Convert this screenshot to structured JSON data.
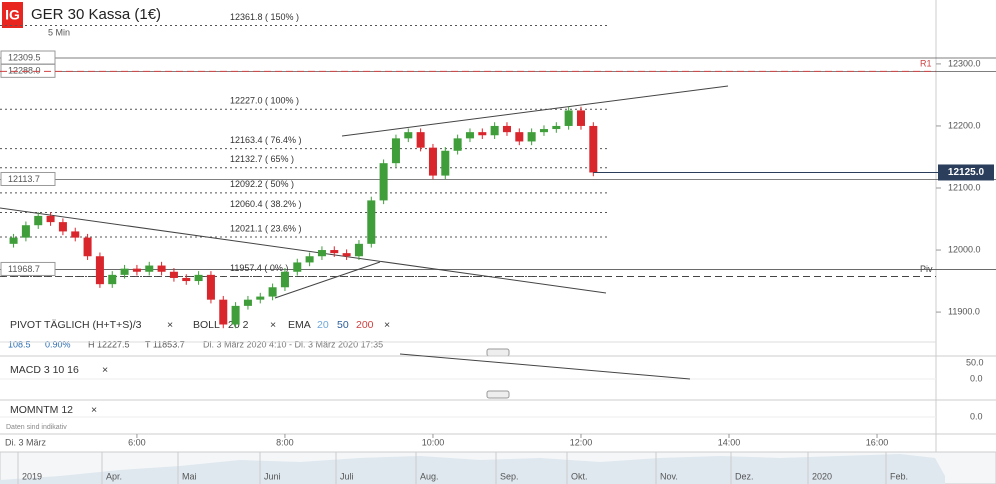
{
  "header": {
    "logo": "IG",
    "title": "GER 30 Kassa (1€)",
    "interval": "5 Min"
  },
  "indicators": {
    "pivot": "PIVOT TÄGLICH (H+T+S)/3",
    "boll": "BOLL",
    "boll_params": "20  2",
    "ema": "EMA",
    "ema_20": "20",
    "ema_50": "50",
    "ema_200": "200"
  },
  "info": {
    "change": "108.5",
    "percent": "0.90%",
    "high": "H 12227.5",
    "low": "T 11853.7",
    "range": "Di. 3 März 2020 4:10 - Di. 3 März 2020 17:35"
  },
  "macd": {
    "label": "MACD  3  10  16",
    "tick_top": "50.0",
    "tick_zero": "0.0"
  },
  "momentum": {
    "label": "MOMNTM  12",
    "tick_zero": "0.0",
    "note": "Daten sind indikativ"
  },
  "navigator": [
    "2019",
    "Apr.",
    "Mai",
    "Juni",
    "Juli",
    "Aug.",
    "Sep.",
    "Okt.",
    "Nov.",
    "Dez.",
    "2020",
    "Feb."
  ],
  "chart_data": {
    "type": "candlestick",
    "date_label": "Di. 3 März",
    "x": [
      260,
      270,
      280,
      290,
      300,
      310,
      320,
      330,
      340,
      350,
      360,
      370,
      380,
      390,
      400,
      410,
      420,
      430,
      440,
      450,
      460,
      470,
      480,
      490,
      500,
      510,
      520,
      530,
      540,
      550,
      560,
      570,
      580,
      590,
      600,
      610,
      620,
      630,
      640,
      650,
      660,
      670,
      680,
      690,
      700,
      710,
      720,
      730
    ],
    "open": [
      12010,
      12020,
      12040,
      12055,
      12045,
      12030,
      12020,
      11990,
      11945,
      11960,
      11970,
      11965,
      11975,
      11965,
      11955,
      11950,
      11960,
      11920,
      11880,
      11910,
      11920,
      11925,
      11940,
      11965,
      11980,
      11990,
      12000,
      11995,
      11990,
      12010,
      12080,
      12140,
      12180,
      12190,
      12165,
      12120,
      12160,
      12180,
      12190,
      12185,
      12200,
      12190,
      12175,
      12190,
      12195,
      12200,
      12225,
      12200
    ],
    "high": [
      12026,
      12046,
      12061,
      12061,
      12051,
      12036,
      12026,
      11996,
      11966,
      11976,
      11976,
      11981,
      11981,
      11971,
      11961,
      11966,
      11966,
      11926,
      11916,
      11926,
      11931,
      11946,
      11971,
      11986,
      11996,
      12006,
      12006,
      12001,
      12016,
      12086,
      12146,
      12186,
      12196,
      12196,
      12171,
      12166,
      12186,
      12196,
      12196,
      12206,
      12206,
      12196,
      12196,
      12201,
      12206,
      12231,
      12231,
      12206
    ],
    "low": [
      12004,
      12014,
      12034,
      12039,
      12024,
      12014,
      11984,
      11939,
      11939,
      11954,
      11959,
      11959,
      11959,
      11949,
      11944,
      11944,
      11914,
      11874,
      11874,
      11904,
      11914,
      11919,
      11934,
      11959,
      11974,
      11984,
      11989,
      11984,
      11984,
      12004,
      12074,
      12134,
      12174,
      12159,
      12114,
      12114,
      12154,
      12174,
      12179,
      12179,
      12184,
      12169,
      12169,
      12184,
      12189,
      12194,
      12194,
      12119
    ],
    "close": [
      12020,
      12040,
      12055,
      12045,
      12030,
      12020,
      11990,
      11945,
      11960,
      11970,
      11965,
      11975,
      11965,
      11955,
      11950,
      11960,
      11920,
      11880,
      11910,
      11920,
      11925,
      11940,
      11965,
      11980,
      11990,
      12000,
      11995,
      11990,
      12010,
      12080,
      12140,
      12180,
      12190,
      12165,
      12120,
      12160,
      12180,
      12190,
      12185,
      12200,
      12190,
      12175,
      12190,
      12195,
      12200,
      12225,
      12200,
      12125
    ],
    "up_color": "#3f9e3a",
    "down_color": "#d8262c",
    "xlim": [
      249,
      1007
    ],
    "xticks": [
      {
        "value": 360,
        "label": "6:00"
      },
      {
        "value": 480,
        "label": "8:00"
      },
      {
        "value": 600,
        "label": "10:00"
      },
      {
        "value": 720,
        "label": "12:00"
      },
      {
        "value": 840,
        "label": "14:00"
      },
      {
        "value": 960,
        "label": "16:00"
      }
    ],
    "ylim": [
      11855,
      12403
    ],
    "yticks": [
      {
        "value": 11900,
        "label": "11900.0"
      },
      {
        "value": 12000,
        "label": "12000.0"
      },
      {
        "value": 12100,
        "label": "12100.0"
      },
      {
        "value": 12200,
        "label": "12200.0"
      },
      {
        "value": 12300,
        "label": "12300.0"
      }
    ],
    "last_price": {
      "value": 12125,
      "label": "12125.0"
    },
    "levels": [
      {
        "value": 12309.5,
        "label": "12309.5"
      },
      {
        "value": 12288,
        "label": "12288.0"
      },
      {
        "value": 12113.7,
        "label": "12113.7"
      },
      {
        "value": 11968.7,
        "label": "11968.7"
      }
    ],
    "fibonacci": [
      {
        "value": 12361.8,
        "label": "12361.8 ( 150% )"
      },
      {
        "value": 12227,
        "label": "12227.0 ( 100% )"
      },
      {
        "value": 12163.4,
        "label": "12163.4 ( 76.4% )"
      },
      {
        "value": 12132.7,
        "label": "12132.7 ( 65% )"
      },
      {
        "value": 12092.2,
        "label": "12092.2 ( 50% )"
      },
      {
        "value": 12060.4,
        "label": "12060.4 ( 38.2% )"
      },
      {
        "value": 12021.1,
        "label": "12021.1 ( 23.6% )"
      },
      {
        "value": 11957.4,
        "label": "11957.4 ( 0% )"
      }
    ],
    "pivots": [
      {
        "name": "R1",
        "value": 12288,
        "color": "#d04040"
      },
      {
        "name": "Piv",
        "value": 11957.4,
        "color": "#444444"
      }
    ]
  }
}
